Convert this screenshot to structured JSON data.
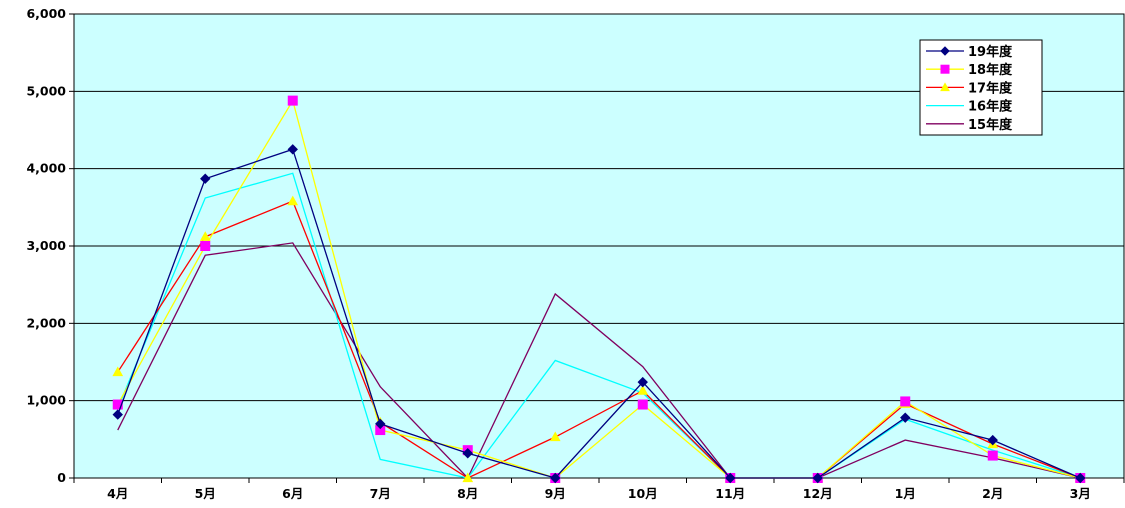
{
  "chart_data": {
    "type": "line",
    "title": "",
    "xlabel": "",
    "ylabel": "",
    "categories": [
      "4月",
      "5月",
      "6月",
      "7月",
      "8月",
      "9月",
      "10月",
      "11月",
      "12月",
      "1月",
      "2月",
      "3月"
    ],
    "ylim": [
      0,
      6000
    ],
    "yticks": [
      "0",
      "1,000",
      "2,000",
      "3,000",
      "4,000",
      "5,000",
      "6,000"
    ],
    "yticks_values": [
      0,
      1000,
      2000,
      3000,
      4000,
      5000,
      6000
    ],
    "grid": true,
    "plot_background": "#ccffff",
    "legend_position": "top-right",
    "series": [
      {
        "name": "19年度",
        "color": "#000080",
        "marker": "diamond",
        "values": [
          820,
          3870,
          4250,
          700,
          320,
          0,
          1240,
          0,
          0,
          780,
          490,
          0
        ]
      },
      {
        "name": "18年度",
        "color": "#ffff00",
        "marker": "square",
        "marker_color": "#ff00ff",
        "values": [
          950,
          3000,
          4880,
          620,
          360,
          0,
          950,
          0,
          0,
          990,
          290,
          0
        ]
      },
      {
        "name": "17年度",
        "color": "#ff0000",
        "marker": "triangle",
        "marker_color": "#ffff00",
        "values": [
          1370,
          3120,
          3580,
          720,
          0,
          530,
          1130,
          0,
          0,
          960,
          440,
          0
        ]
      },
      {
        "name": "16年度",
        "color": "#00ffff",
        "marker": "none",
        "values": [
          900,
          3620,
          3940,
          240,
          0,
          1520,
          1100,
          0,
          0,
          760,
          360,
          0
        ]
      },
      {
        "name": "15年度",
        "color": "#800060",
        "marker": "none",
        "values": [
          620,
          2880,
          3040,
          1180,
          0,
          2380,
          1440,
          0,
          0,
          490,
          260,
          0
        ]
      }
    ]
  }
}
